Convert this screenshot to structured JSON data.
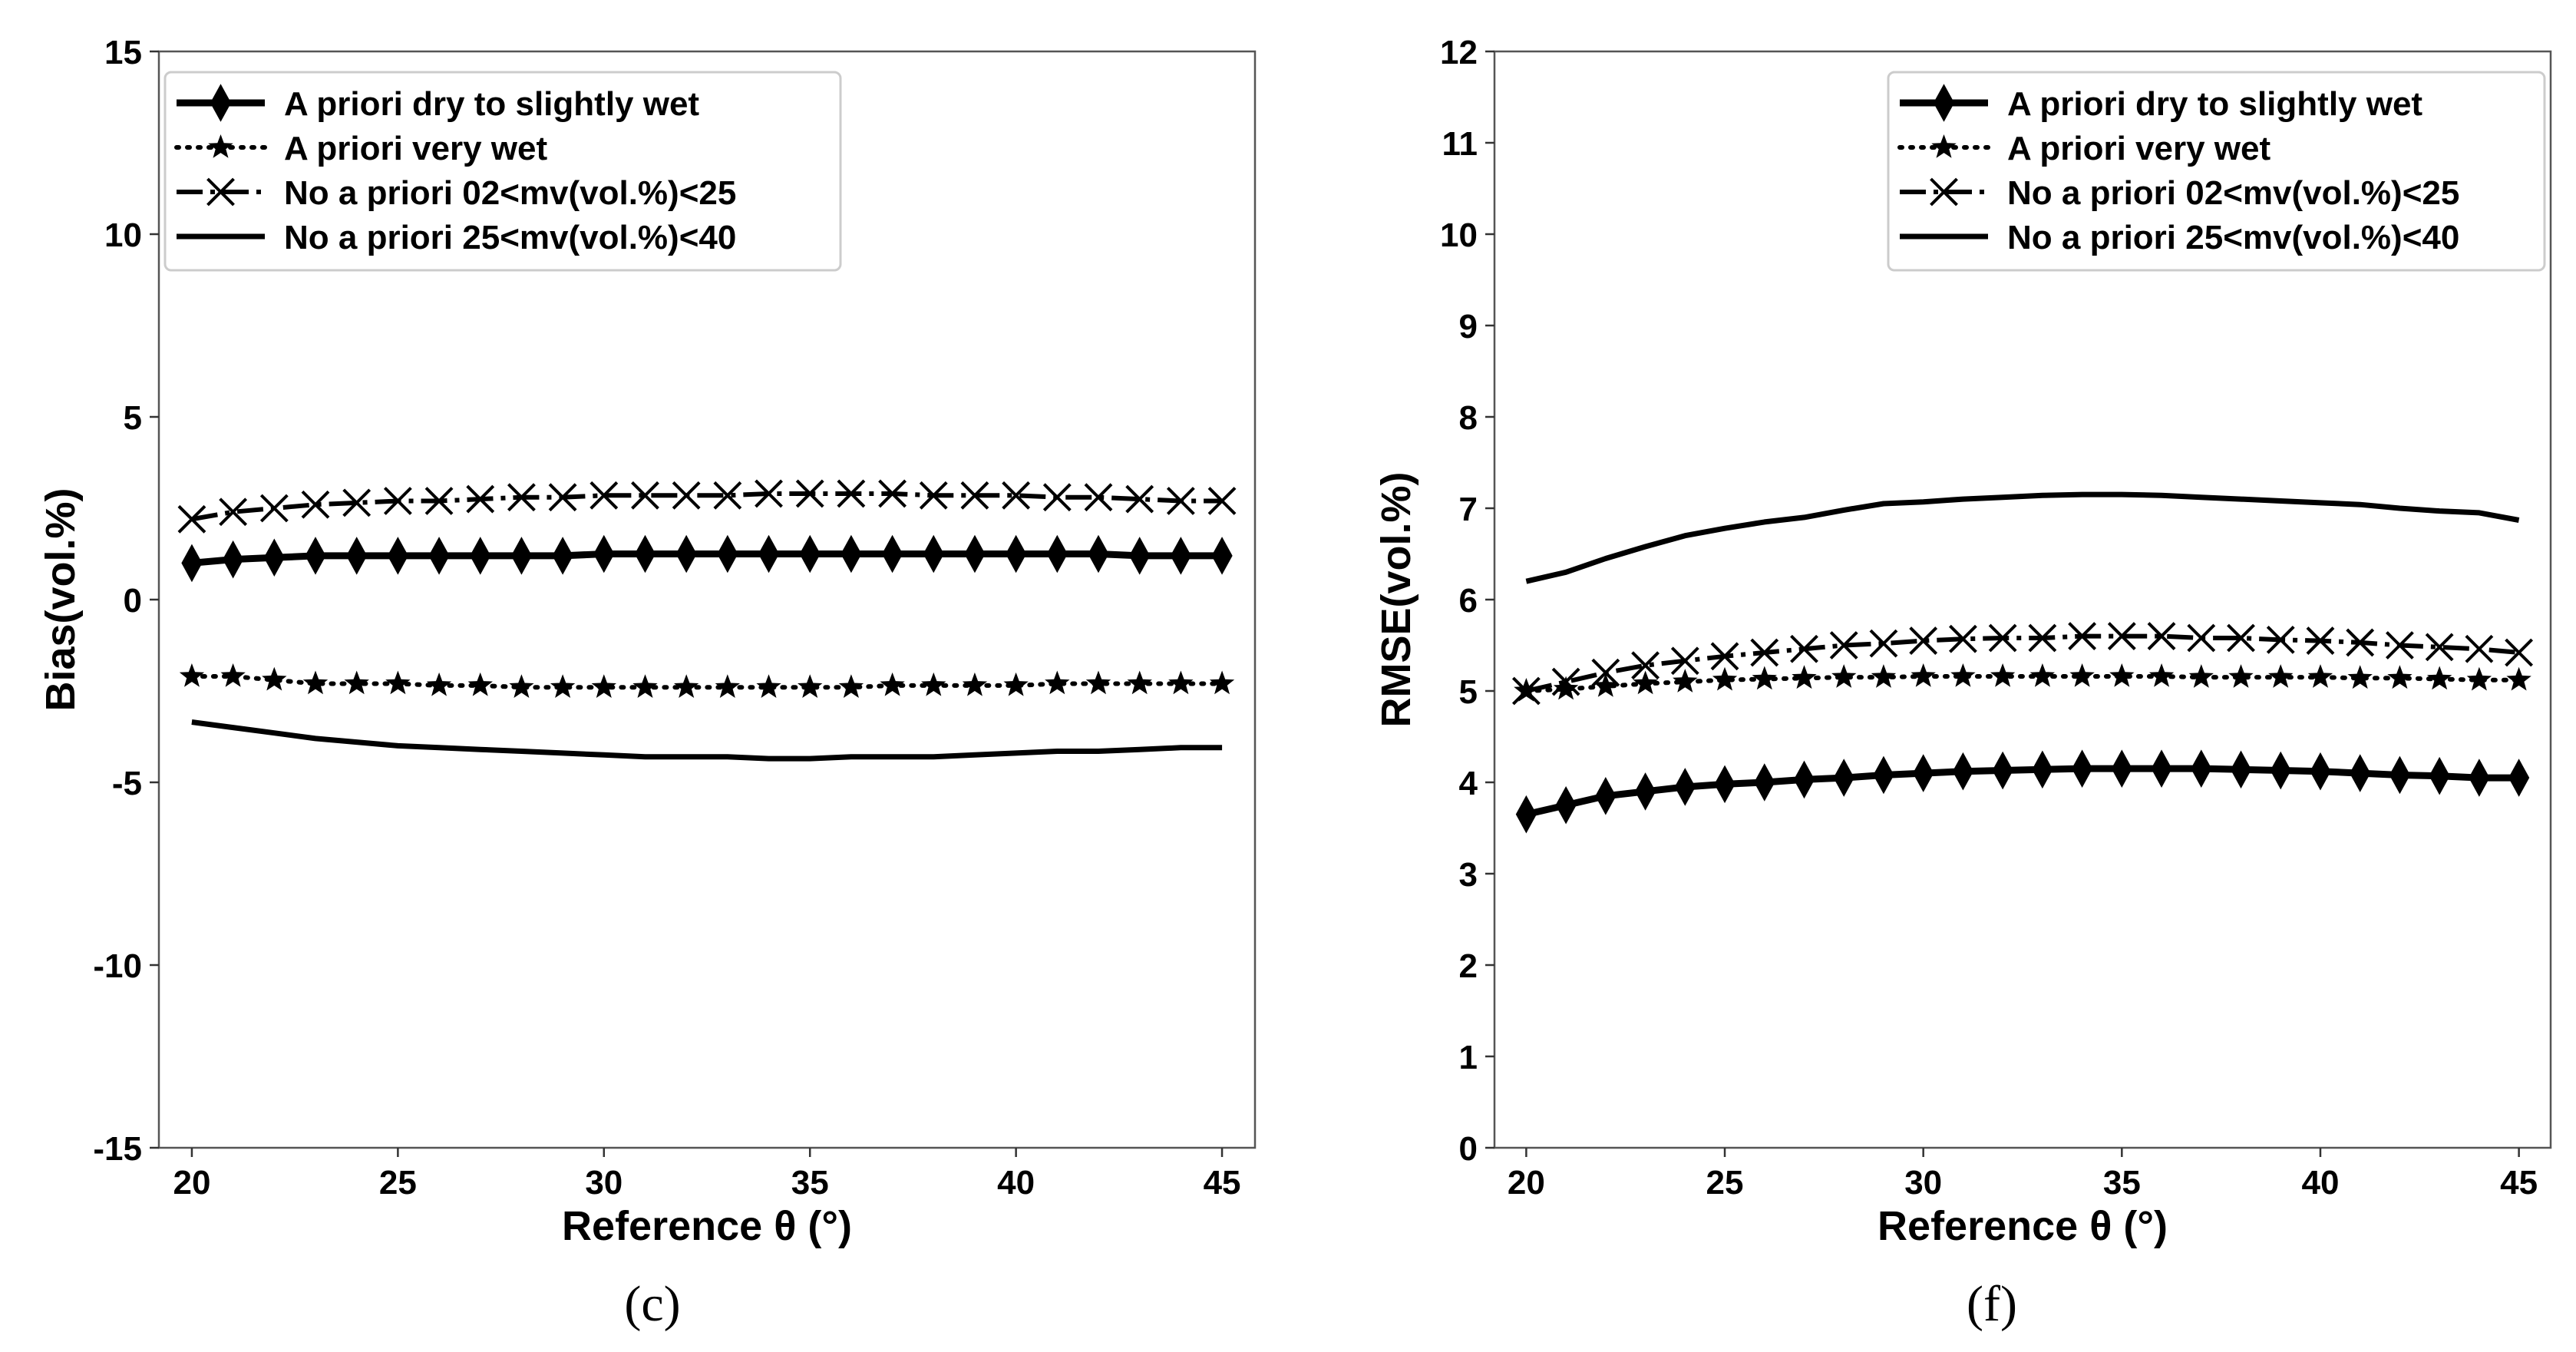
{
  "chart_data": [
    {
      "type": "line",
      "panel_label": "(c)",
      "xlabel": "Reference θ (°)",
      "ylabel": "Bias(vol.%)",
      "xlim": [
        19.2,
        45.8
      ],
      "ylim": [
        -15,
        15
      ],
      "xticks": [
        20,
        25,
        30,
        35,
        40,
        45
      ],
      "xtick_labels": [
        "20",
        "25",
        "30",
        "35",
        "40",
        "45"
      ],
      "yticks": [
        -15,
        -10,
        -5,
        0,
        5,
        10,
        15
      ],
      "ytick_labels": [
        "-15",
        "-10",
        "-5",
        "0",
        "5",
        "10",
        "15"
      ],
      "legend_position": "upper-left",
      "grid": false,
      "x": [
        20,
        21,
        22,
        23,
        24,
        25,
        26,
        27,
        28,
        29,
        30,
        31,
        32,
        33,
        34,
        35,
        36,
        37,
        38,
        39,
        40,
        41,
        42,
        43,
        44,
        45
      ],
      "series": [
        {
          "name": "A priori dry to slightly wet",
          "style": "solid-diamond",
          "values": [
            1.0,
            1.1,
            1.15,
            1.2,
            1.2,
            1.2,
            1.2,
            1.2,
            1.2,
            1.2,
            1.25,
            1.25,
            1.25,
            1.25,
            1.25,
            1.25,
            1.25,
            1.25,
            1.25,
            1.25,
            1.25,
            1.25,
            1.25,
            1.2,
            1.2,
            1.2
          ]
        },
        {
          "name": "A priori very wet",
          "style": "dotted-star",
          "values": [
            -2.1,
            -2.1,
            -2.2,
            -2.3,
            -2.3,
            -2.3,
            -2.35,
            -2.35,
            -2.4,
            -2.4,
            -2.4,
            -2.4,
            -2.4,
            -2.4,
            -2.4,
            -2.4,
            -2.4,
            -2.35,
            -2.35,
            -2.35,
            -2.35,
            -2.3,
            -2.3,
            -2.3,
            -2.3,
            -2.3
          ]
        },
        {
          "name": "No a priori 02<mv(vol.%)<25",
          "style": "dashdot-x",
          "values": [
            2.2,
            2.4,
            2.5,
            2.6,
            2.65,
            2.7,
            2.7,
            2.75,
            2.8,
            2.8,
            2.85,
            2.85,
            2.85,
            2.85,
            2.9,
            2.9,
            2.9,
            2.9,
            2.85,
            2.85,
            2.85,
            2.8,
            2.8,
            2.75,
            2.7,
            2.7
          ]
        },
        {
          "name": "No a priori 25<mv(vol.%)<40",
          "style": "solid",
          "values": [
            -3.35,
            -3.5,
            -3.65,
            -3.8,
            -3.9,
            -4.0,
            -4.05,
            -4.1,
            -4.15,
            -4.2,
            -4.25,
            -4.3,
            -4.3,
            -4.3,
            -4.35,
            -4.35,
            -4.3,
            -4.3,
            -4.3,
            -4.25,
            -4.2,
            -4.15,
            -4.15,
            -4.1,
            -4.05,
            -4.05
          ]
        }
      ]
    },
    {
      "type": "line",
      "panel_label": "(f)",
      "xlabel": "Reference θ (°)",
      "ylabel": "RMSE(vol.%)",
      "xlim": [
        19.2,
        45.8
      ],
      "ylim": [
        0,
        12
      ],
      "xticks": [
        20,
        25,
        30,
        35,
        40,
        45
      ],
      "xtick_labels": [
        "20",
        "25",
        "30",
        "35",
        "40",
        "45"
      ],
      "yticks": [
        0,
        1,
        2,
        3,
        4,
        5,
        6,
        7,
        8,
        9,
        10,
        11,
        12
      ],
      "ytick_labels": [
        "0",
        "1",
        "2",
        "3",
        "4",
        "5",
        "6",
        "7",
        "8",
        "9",
        "10",
        "11",
        "12"
      ],
      "legend_position": "upper-right",
      "grid": false,
      "x": [
        20,
        21,
        22,
        23,
        24,
        25,
        26,
        27,
        28,
        29,
        30,
        31,
        32,
        33,
        34,
        35,
        36,
        37,
        38,
        39,
        40,
        41,
        42,
        43,
        44,
        45
      ],
      "series": [
        {
          "name": "A priori dry to slightly wet",
          "style": "solid-diamond",
          "values": [
            3.65,
            3.75,
            3.85,
            3.9,
            3.95,
            3.98,
            4.0,
            4.03,
            4.05,
            4.08,
            4.1,
            4.12,
            4.13,
            4.14,
            4.15,
            4.15,
            4.15,
            4.15,
            4.14,
            4.13,
            4.12,
            4.1,
            4.08,
            4.07,
            4.05,
            4.05
          ]
        },
        {
          "name": "A priori very wet",
          "style": "dotted-star",
          "values": [
            5.0,
            5.02,
            5.05,
            5.08,
            5.1,
            5.12,
            5.13,
            5.14,
            5.15,
            5.15,
            5.16,
            5.16,
            5.16,
            5.16,
            5.16,
            5.16,
            5.16,
            5.15,
            5.15,
            5.15,
            5.15,
            5.14,
            5.14,
            5.13,
            5.12,
            5.12
          ]
        },
        {
          "name": "No a priori 02<mv(vol.%)<25",
          "style": "dashdot-x",
          "values": [
            5.0,
            5.1,
            5.2,
            5.28,
            5.33,
            5.38,
            5.42,
            5.46,
            5.5,
            5.52,
            5.55,
            5.57,
            5.58,
            5.58,
            5.6,
            5.6,
            5.6,
            5.58,
            5.58,
            5.56,
            5.55,
            5.53,
            5.5,
            5.48,
            5.46,
            5.42
          ]
        },
        {
          "name": "No a priori 25<mv(vol.%)<40",
          "style": "solid",
          "values": [
            6.2,
            6.3,
            6.45,
            6.58,
            6.7,
            6.78,
            6.85,
            6.9,
            6.98,
            7.05,
            7.07,
            7.1,
            7.12,
            7.14,
            7.15,
            7.15,
            7.14,
            7.12,
            7.1,
            7.08,
            7.06,
            7.04,
            7.0,
            6.97,
            6.95,
            6.87
          ]
        }
      ]
    }
  ]
}
